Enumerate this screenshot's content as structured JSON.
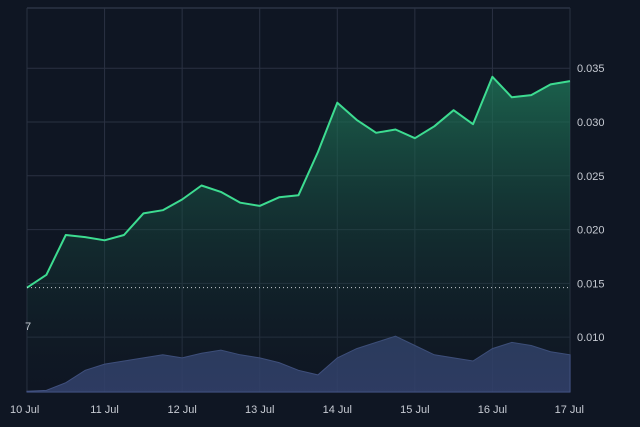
{
  "chart_data": {
    "type": "area",
    "title": "",
    "xlabel": "",
    "ylabel": "",
    "x_ticks": [
      "10 Jul",
      "11 Jul",
      "12 Jul",
      "13 Jul",
      "14 Jul",
      "15 Jul",
      "16 Jul",
      "17 Jul"
    ],
    "y_ticks": [
      "0.010",
      "0.015",
      "0.020",
      "0.025",
      "0.030",
      "0.035"
    ],
    "y_ticks_values": [
      0.01,
      0.015,
      0.02,
      0.025,
      0.03,
      0.035
    ],
    "ylim": [
      0.0049,
      0.0406
    ],
    "xlim_days": [
      0,
      7.0
    ],
    "volume_axis_marker": "7",
    "reference_line": {
      "value": 0.0146,
      "style": "dotted"
    },
    "series": [
      {
        "kind": "price",
        "color": "#3ddc91",
        "x": [
          "10 Jul 00:00",
          "10 Jul 06:00",
          "10 Jul 12:00",
          "10 Jul 18:00",
          "11 Jul 00:00",
          "11 Jul 06:00",
          "11 Jul 12:00",
          "11 Jul 18:00",
          "12 Jul 00:00",
          "12 Jul 06:00",
          "12 Jul 12:00",
          "12 Jul 18:00",
          "13 Jul 00:00",
          "13 Jul 06:00",
          "13 Jul 12:00",
          "13 Jul 18:00",
          "14 Jul 00:00",
          "14 Jul 06:00",
          "14 Jul 12:00",
          "14 Jul 18:00",
          "15 Jul 00:00",
          "15 Jul 06:00",
          "15 Jul 12:00",
          "15 Jul 18:00",
          "16 Jul 00:00",
          "16 Jul 06:00",
          "16 Jul 12:00",
          "16 Jul 18:00",
          "17 Jul 00:00"
        ],
        "values": [
          0.0146,
          0.0158,
          0.0195,
          0.0193,
          0.019,
          0.0195,
          0.0215,
          0.0218,
          0.0228,
          0.0241,
          0.0235,
          0.0225,
          0.0222,
          0.023,
          0.0232,
          0.0272,
          0.0318,
          0.0302,
          0.029,
          0.0293,
          0.0285,
          0.0296,
          0.0311,
          0.0298,
          0.0342,
          0.0323,
          0.0325,
          0.0335,
          0.0338
        ]
      },
      {
        "kind": "volume",
        "color": "#3a4a7a",
        "x": [
          "10 Jul 00:00",
          "10 Jul 06:00",
          "10 Jul 12:00",
          "10 Jul 18:00",
          "11 Jul 00:00",
          "11 Jul 06:00",
          "11 Jul 12:00",
          "11 Jul 18:00",
          "12 Jul 00:00",
          "12 Jul 06:00",
          "12 Jul 12:00",
          "12 Jul 18:00",
          "13 Jul 00:00",
          "13 Jul 06:00",
          "13 Jul 12:00",
          "13 Jul 18:00",
          "14 Jul 00:00",
          "14 Jul 06:00",
          "14 Jul 12:00",
          "14 Jul 18:00",
          "15 Jul 00:00",
          "15 Jul 06:00",
          "15 Jul 12:00",
          "15 Jul 18:00",
          "16 Jul 00:00",
          "16 Jul 06:00",
          "16 Jul 12:00",
          "16 Jul 18:00",
          "17 Jul 00:00"
        ],
        "values": [
          0.5,
          1,
          6,
          14,
          18,
          20,
          22,
          24,
          22,
          25,
          27,
          24,
          22,
          19,
          14,
          11,
          22,
          28,
          32,
          36,
          30,
          24,
          22,
          20,
          28,
          32,
          30,
          26,
          24
        ]
      }
    ],
    "volume_max": 40,
    "grid": true,
    "legend": "none"
  }
}
